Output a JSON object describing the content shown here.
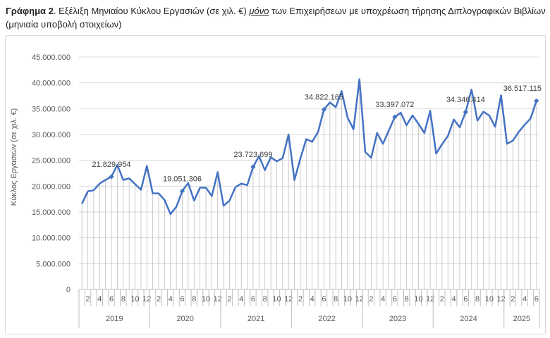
{
  "caption": {
    "lead": "Γράφημα 2",
    "text_before": ". Εξέλιξη Μηνιαίου Κύκλου Εργασιών (σε χιλ. €) ",
    "emphasis": "μόνο",
    "text_after": " των Επιχειρήσεων με υποχρέωση τήρησης Διπλογραφικών Βιβλίων (μηνιαία υποβολή στοιχείων)"
  },
  "colors": {
    "line": "#4472C4",
    "drop_lines": "#bfbfbf",
    "grid": "#d9d9d9"
  },
  "chart_data": {
    "type": "line",
    "title": "",
    "ylabel": "Κύκλος Εργασιών (σε χιλ. €)",
    "ylim": [
      0,
      45000000
    ],
    "y_ticks": [
      0,
      5000000,
      10000000,
      15000000,
      20000000,
      25000000,
      30000000,
      35000000,
      40000000,
      45000000
    ],
    "y_tick_labels": [
      "0",
      "5.000.000",
      "10.000.000",
      "15.000.000",
      "20.000.000",
      "25.000.000",
      "30.000.000",
      "35.000.000",
      "40.000.000",
      "45.000.000"
    ],
    "grid": "horizontal",
    "drop_lines": true,
    "legend": "none",
    "x_month_labels": [
      "2",
      "4",
      "6",
      "8",
      "10",
      "12"
    ],
    "years": [
      {
        "label": "2019",
        "months": 12
      },
      {
        "label": "2020",
        "months": 12
      },
      {
        "label": "2021",
        "months": 12
      },
      {
        "label": "2022",
        "months": 12
      },
      {
        "label": "2023",
        "months": 12
      },
      {
        "label": "2024",
        "months": 12
      },
      {
        "label": "2025",
        "months": 6
      }
    ],
    "series": [
      {
        "values": [
          16600000,
          19000000,
          19200000,
          20500000,
          21200000,
          21829954,
          24100000,
          21200000,
          21500000,
          20400000,
          19300000,
          23900000,
          18600000,
          18600000,
          17300000,
          14600000,
          16000000,
          19051306,
          20600000,
          17200000,
          19700000,
          19700000,
          18100000,
          22700000,
          16200000,
          17200000,
          19800000,
          20500000,
          20200000,
          23723699,
          25800000,
          23100000,
          25600000,
          24800000,
          25400000,
          30000000,
          21200000,
          25300000,
          29100000,
          28600000,
          30500000,
          34822165,
          36200000,
          35300000,
          38400000,
          33300000,
          31000000,
          40700000,
          26600000,
          25500000,
          30300000,
          28200000,
          30800000,
          33397072,
          34200000,
          31800000,
          33700000,
          32100000,
          30300000,
          34600000,
          26300000,
          28100000,
          29700000,
          32900000,
          31400000,
          34346414,
          38700000,
          32700000,
          34400000,
          33700000,
          31500000,
          37600000,
          28200000,
          28800000,
          30500000,
          31900000,
          33100000,
          36517115
        ]
      }
    ],
    "data_labels": [
      {
        "index": 5,
        "text": "21.829.954"
      },
      {
        "index": 17,
        "text": "19.051.306"
      },
      {
        "index": 29,
        "text": "23.723.699"
      },
      {
        "index": 41,
        "text": "34.822.165"
      },
      {
        "index": 53,
        "text": "33.397.072"
      },
      {
        "index": 65,
        "text": "34.346.414"
      },
      {
        "index": 77,
        "text": "36.517.115"
      }
    ]
  }
}
